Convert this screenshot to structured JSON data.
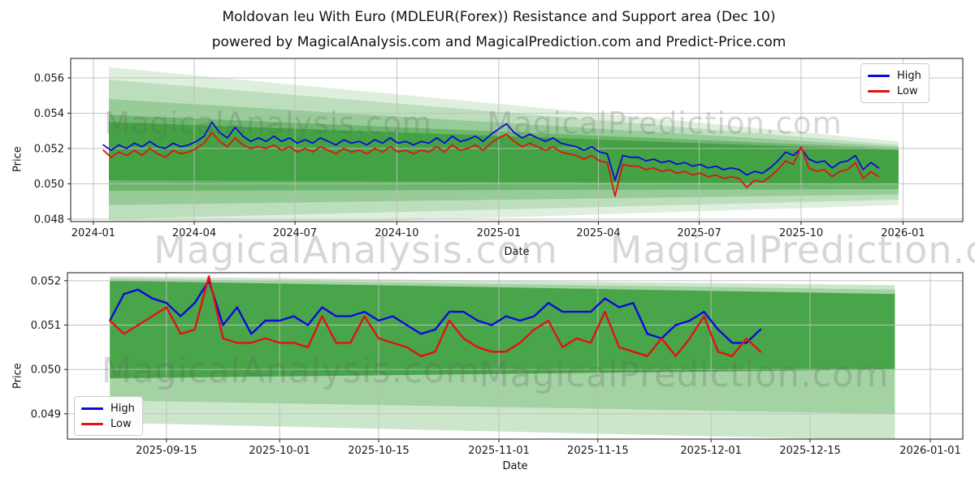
{
  "title": "Moldovan leu With Euro (MDLEUR(Forex)) Resistance and Support area (Dec 10)",
  "subtitle": "powered by MagicalAnalysis.com and MagicalPrediction.com and Predict-Price.com",
  "watermarks": {
    "analysis": "MagicalAnalysis.com",
    "prediction": "MagicalPrediction.com"
  },
  "colors": {
    "high": "#0b0bdb",
    "low": "#e21212",
    "band": "#008000",
    "grid": "#bdbdbd",
    "spine": "#1a1a1a",
    "tick_text": "#1a1a1a",
    "watermark": "#5f5f5f"
  },
  "chart_data": [
    {
      "type": "line",
      "title": "",
      "xlabel": "Date",
      "ylabel": "Price",
      "legend_position": "upper right",
      "grid": true,
      "x_origin": "2024-01-01",
      "x_start_day": 9,
      "x_step_days": 7,
      "xlim_days": [
        -20.5,
        785
      ],
      "ylim": [
        0.04786,
        0.0571
      ],
      "yticks": [
        0.048,
        0.05,
        0.052,
        0.054,
        0.056
      ],
      "xticks": [
        {
          "label": "2024-01",
          "day": 0
        },
        {
          "label": "2024-04",
          "day": 91
        },
        {
          "label": "2024-07",
          "day": 182
        },
        {
          "label": "2024-10",
          "day": 274
        },
        {
          "label": "2025-01",
          "day": 366
        },
        {
          "label": "2025-04",
          "day": 456
        },
        {
          "label": "2025-07",
          "day": 547
        },
        {
          "label": "2025-10",
          "day": 639
        },
        {
          "label": "2026-01",
          "day": 731
        }
      ],
      "series": [
        {
          "name": "High",
          "color_key": "high",
          "values": [
            0.0522,
            0.0519,
            0.0522,
            0.052,
            0.0523,
            0.0521,
            0.0524,
            0.0521,
            0.052,
            0.0523,
            0.0521,
            0.0522,
            0.0524,
            0.0527,
            0.0535,
            0.0529,
            0.0526,
            0.0532,
            0.0527,
            0.0524,
            0.0526,
            0.0524,
            0.0527,
            0.0524,
            0.0526,
            0.0523,
            0.0525,
            0.0523,
            0.0526,
            0.0524,
            0.0522,
            0.0525,
            0.0523,
            0.0524,
            0.0522,
            0.0525,
            0.0523,
            0.0526,
            0.0523,
            0.0524,
            0.0522,
            0.0524,
            0.0523,
            0.0526,
            0.0523,
            0.0527,
            0.0524,
            0.0525,
            0.0527,
            0.0524,
            0.0528,
            0.0531,
            0.0534,
            0.0529,
            0.0526,
            0.0528,
            0.0526,
            0.0524,
            0.0526,
            0.0523,
            0.0522,
            0.0521,
            0.0519,
            0.0521,
            0.0518,
            0.0517,
            0.0502,
            0.0516,
            0.0515,
            0.0515,
            0.0513,
            0.0514,
            0.0512,
            0.0513,
            0.0511,
            0.0512,
            0.051,
            0.0511,
            0.0509,
            0.051,
            0.0508,
            0.0509,
            0.0508,
            0.0505,
            0.0507,
            0.0506,
            0.0509,
            0.0513,
            0.0518,
            0.0516,
            0.052,
            0.0514,
            0.0512,
            0.0513,
            0.0509,
            0.0512,
            0.0513,
            0.0516,
            0.0508,
            0.0512,
            0.0509
          ]
        },
        {
          "name": "Low",
          "color_key": "low",
          "values": [
            0.0519,
            0.0515,
            0.0518,
            0.0516,
            0.0519,
            0.0516,
            0.052,
            0.0517,
            0.0515,
            0.0519,
            0.0517,
            0.0518,
            0.052,
            0.0523,
            0.0529,
            0.0524,
            0.0521,
            0.0526,
            0.0522,
            0.052,
            0.0521,
            0.052,
            0.0522,
            0.0519,
            0.0521,
            0.0518,
            0.052,
            0.0518,
            0.0521,
            0.0519,
            0.0517,
            0.052,
            0.0518,
            0.0519,
            0.0517,
            0.052,
            0.0518,
            0.0521,
            0.0518,
            0.0519,
            0.0517,
            0.0519,
            0.0518,
            0.0521,
            0.0518,
            0.0522,
            0.0519,
            0.052,
            0.0522,
            0.0519,
            0.0523,
            0.0526,
            0.0528,
            0.0524,
            0.0521,
            0.0523,
            0.0521,
            0.0519,
            0.0521,
            0.0518,
            0.0517,
            0.0516,
            0.0514,
            0.0516,
            0.0513,
            0.0512,
            0.0493,
            0.0511,
            0.051,
            0.051,
            0.0508,
            0.0509,
            0.0507,
            0.0508,
            0.0506,
            0.0507,
            0.0505,
            0.0506,
            0.0504,
            0.0505,
            0.0503,
            0.0504,
            0.0503,
            0.0498,
            0.0502,
            0.0501,
            0.0504,
            0.0508,
            0.0513,
            0.0511,
            0.0521,
            0.0509,
            0.0507,
            0.0508,
            0.0504,
            0.0507,
            0.0508,
            0.0512,
            0.0503,
            0.0507,
            0.0504
          ]
        }
      ],
      "bands": [
        {
          "day0": 14,
          "day1": 727,
          "left": [
            0.0474,
            0.0566
          ],
          "right": [
            0.0488,
            0.0524
          ],
          "opacity": 0.13
        },
        {
          "day0": 14,
          "day1": 727,
          "left": [
            0.048,
            0.0559
          ],
          "right": [
            0.0491,
            0.0522
          ],
          "opacity": 0.15
        },
        {
          "day0": 14,
          "day1": 727,
          "left": [
            0.0488,
            0.0548
          ],
          "right": [
            0.0494,
            0.0521
          ],
          "opacity": 0.2
        },
        {
          "day0": 14,
          "day1": 727,
          "left": [
            0.0496,
            0.0539
          ],
          "right": [
            0.0497,
            0.052
          ],
          "opacity": 0.28
        },
        {
          "day0": 14,
          "day1": 727,
          "left": [
            0.0502,
            0.0535
          ],
          "right": [
            0.05,
            0.0519
          ],
          "opacity": 0.38
        }
      ]
    },
    {
      "type": "line",
      "title": "",
      "xlabel": "Date",
      "ylabel": "Price",
      "legend_position": "lower left",
      "grid": true,
      "x_origin": "2025-09-01",
      "x_start_day": 6,
      "x_step_days": 2,
      "xlim_days": [
        0,
        126.6
      ],
      "ylim": [
        0.04843,
        0.05218
      ],
      "yticks": [
        0.049,
        0.05,
        0.051,
        0.052
      ],
      "xticks": [
        {
          "label": "2025-09-15",
          "day": 14
        },
        {
          "label": "2025-10-01",
          "day": 30
        },
        {
          "label": "2025-10-15",
          "day": 44
        },
        {
          "label": "2025-11-01",
          "day": 61
        },
        {
          "label": "2025-11-15",
          "day": 75
        },
        {
          "label": "2025-12-01",
          "day": 91
        },
        {
          "label": "2025-12-15",
          "day": 105
        },
        {
          "label": "2026-01-01",
          "day": 122
        }
      ],
      "series": [
        {
          "name": "High",
          "color_key": "high",
          "values": [
            0.0511,
            0.0517,
            0.0518,
            0.0516,
            0.0515,
            0.0512,
            0.0515,
            0.052,
            0.051,
            0.0514,
            0.0508,
            0.0511,
            0.0511,
            0.0512,
            0.051,
            0.0514,
            0.0512,
            0.0512,
            0.0513,
            0.0511,
            0.0512,
            0.051,
            0.0508,
            0.0509,
            0.0513,
            0.0513,
            0.0511,
            0.051,
            0.0512,
            0.0511,
            0.0512,
            0.0515,
            0.0513,
            0.0513,
            0.0513,
            0.0516,
            0.0514,
            0.0515,
            0.0508,
            0.0507,
            0.051,
            0.0511,
            0.0513,
            0.0509,
            0.0506,
            0.0506,
            0.0509
          ]
        },
        {
          "name": "Low",
          "color_key": "low",
          "values": [
            0.0511,
            0.0508,
            0.051,
            0.0512,
            0.0514,
            0.0508,
            0.0509,
            0.0521,
            0.0507,
            0.0506,
            0.0506,
            0.0507,
            0.0506,
            0.0506,
            0.0505,
            0.0512,
            0.0506,
            0.0506,
            0.0512,
            0.0507,
            0.0506,
            0.0505,
            0.0503,
            0.0504,
            0.0511,
            0.0507,
            0.0505,
            0.0504,
            0.0504,
            0.0506,
            0.0509,
            0.0511,
            0.0505,
            0.0507,
            0.0506,
            0.0513,
            0.0505,
            0.0504,
            0.0503,
            0.0507,
            0.0503,
            0.0507,
            0.0512,
            0.0504,
            0.0503,
            0.0507,
            0.0504
          ]
        }
      ],
      "bands": [
        {
          "day0": 6,
          "day1": 117,
          "left": [
            0.0488,
            0.0521
          ],
          "right": [
            0.0484,
            0.0519
          ],
          "opacity": 0.2
        },
        {
          "day0": 6,
          "day1": 117,
          "left": [
            0.0493,
            0.05205
          ],
          "right": [
            0.049,
            0.0518
          ],
          "opacity": 0.2
        },
        {
          "day0": 6,
          "day1": 117,
          "left": [
            0.0498,
            0.052
          ],
          "right": [
            0.05,
            0.0517
          ],
          "opacity": 0.55
        }
      ]
    }
  ]
}
